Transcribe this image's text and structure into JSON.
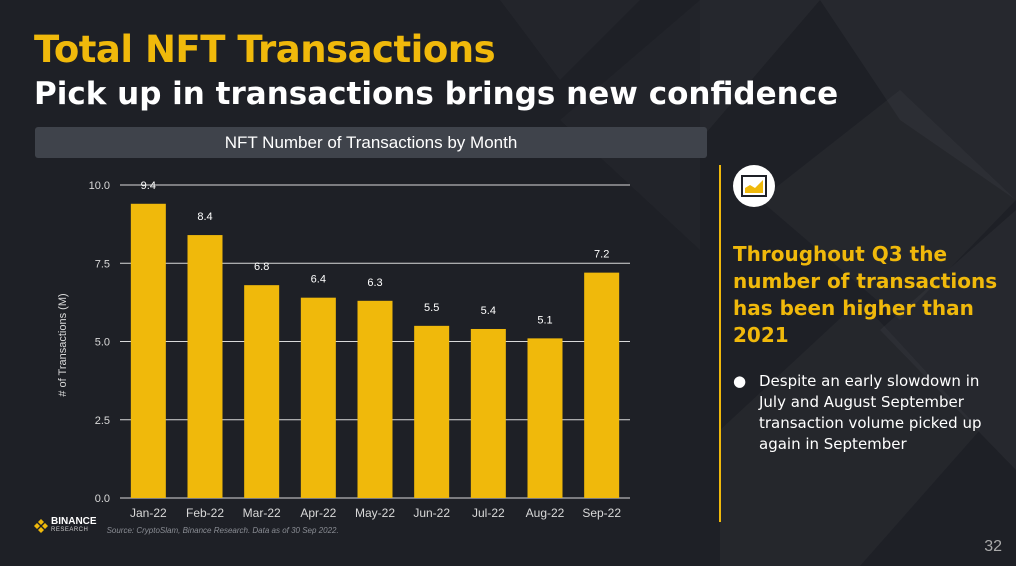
{
  "slide": {
    "title": "Total NFT Transactions",
    "subtitle": "Pick up in transactions brings new confidence",
    "chart_header": "NFT Number of Transactions by Month",
    "headline": "Throughout Q3 the number of transactions has been higher than 2021",
    "bullet": "Despite an early slowdown in July and August September transaction volume picked up again in September",
    "bullet_marker": "●",
    "logo_name": "BINANCE",
    "logo_sub": "RESEARCH",
    "source": "Source: CryptoSlam, Binance Research. Data as of 30 Sep 2022.",
    "page_number": "32",
    "icon": "bar-chart-icon"
  },
  "colors": {
    "brand": "#f0b90b",
    "background": "#1e2026",
    "text": "#ffffff",
    "gridline": "#d9d9d9",
    "axis_text": "#d9d9d9"
  },
  "chart_data": {
    "type": "bar",
    "title": "NFT Number of Transactions by Month",
    "categories": [
      "Jan-22",
      "Feb-22",
      "Mar-22",
      "Apr-22",
      "May-22",
      "Jun-22",
      "Jul-22",
      "Aug-22",
      "Sep-22"
    ],
    "values": [
      9.4,
      8.4,
      6.8,
      6.4,
      6.3,
      5.5,
      5.4,
      5.1,
      7.2
    ],
    "data_labels": [
      "9.4",
      "8.4",
      "6.8",
      "6.4",
      "6.3",
      "5.5",
      "5.4",
      "5.1",
      "7.2"
    ],
    "xlabel": "",
    "ylabel": "# of Transactions (M)",
    "ylim": [
      0,
      10
    ],
    "yticks": [
      0,
      2.5,
      5,
      7.5,
      10
    ],
    "ytick_labels": [
      "0.0",
      "2.5",
      "5.0",
      "7.5",
      "10.0"
    ],
    "grid": true,
    "legend": "none"
  }
}
